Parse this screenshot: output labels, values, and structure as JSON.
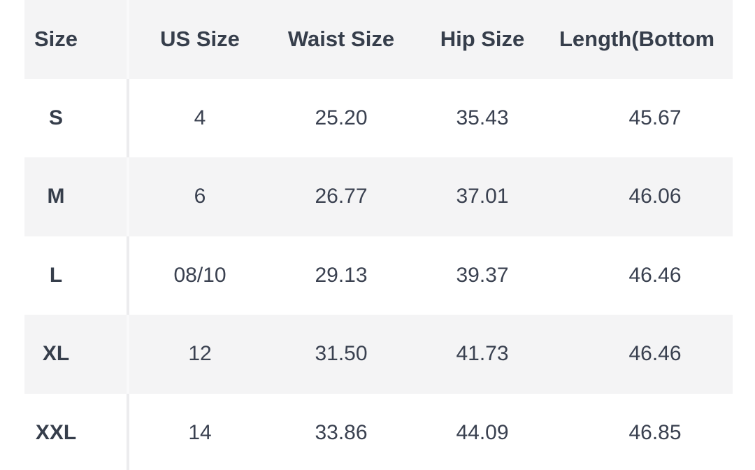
{
  "colors": {
    "page_background": "#ffffff",
    "stripe_row": "#f4f4f5",
    "divider_on_white_row": "#ececee",
    "divider_on_gray_row": "#f9f9fa",
    "text": "#3a4150",
    "bold_text": "#363e4b"
  },
  "size_chart": {
    "columns": [
      "Size",
      "US Size",
      "Waist Size",
      "Hip Size",
      "Length(Bottom"
    ],
    "rows": [
      {
        "size": "S",
        "us_size": "4",
        "waist_size": "25.20",
        "hip_size": "35.43",
        "length": "45.67"
      },
      {
        "size": "M",
        "us_size": "6",
        "waist_size": "26.77",
        "hip_size": "37.01",
        "length": "46.06"
      },
      {
        "size": "L",
        "us_size": "08/10",
        "waist_size": "29.13",
        "hip_size": "39.37",
        "length": "46.46"
      },
      {
        "size": "XL",
        "us_size": "12",
        "waist_size": "31.50",
        "hip_size": "41.73",
        "length": "46.46"
      },
      {
        "size": "XXL",
        "us_size": "14",
        "waist_size": "33.86",
        "hip_size": "44.09",
        "length": "46.85"
      }
    ],
    "striped_row_sizes": [
      "M",
      "XL"
    ]
  }
}
